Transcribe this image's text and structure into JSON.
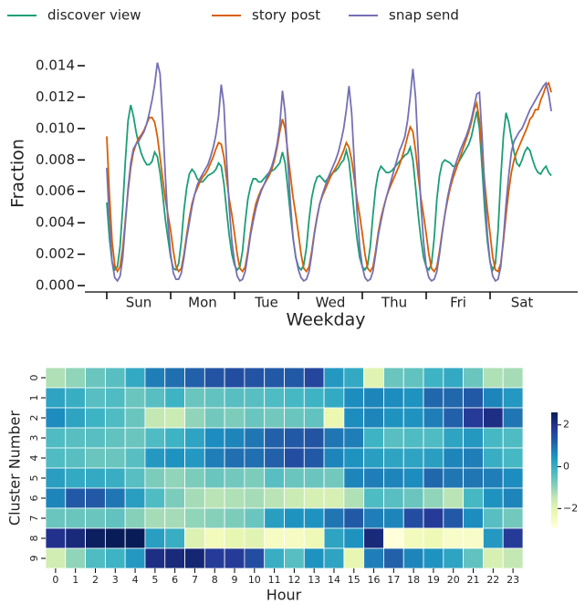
{
  "chart_data": [
    {
      "type": "line",
      "xlabel": "Weekday",
      "ylabel": "Fraction",
      "legend": "top",
      "categories": [
        "Sun",
        "Mon",
        "Tue",
        "Wed",
        "Thu",
        "Fri",
        "Sat"
      ],
      "ylim": [
        0,
        0.014
      ],
      "yticks": [
        {
          "value": 0,
          "label": "0.000"
        },
        {
          "value": 0.002,
          "label": "0.002"
        },
        {
          "value": 0.004,
          "label": "0.004"
        },
        {
          "value": 0.006,
          "label": "0.006"
        },
        {
          "value": 0.008,
          "label": "0.008"
        },
        {
          "value": 0.01,
          "label": "0.010"
        },
        {
          "value": 0.012,
          "label": "0.012"
        },
        {
          "value": 0.014,
          "label": "0.014"
        }
      ],
      "series": [
        {
          "name": "discover view",
          "color": "#1b9e77",
          "values": [
            [
              0.0053,
              0.003,
              0.0015,
              0.001,
              0.0012,
              0.0025,
              0.005,
              0.008,
              0.0105,
              0.0115,
              0.0108,
              0.0098,
              0.009,
              0.0084,
              0.008,
              0.0077,
              0.0077,
              0.0079,
              0.0085,
              0.0082,
              0.0072,
              0.0058,
              0.0042,
              0.003
            ],
            [
              0.0018,
              0.0011,
              0.001,
              0.0014,
              0.0028,
              0.0048,
              0.0062,
              0.0071,
              0.0074,
              0.0072,
              0.0068,
              0.0066,
              0.0066,
              0.0068,
              0.007,
              0.0071,
              0.0072,
              0.0074,
              0.0078,
              0.0076,
              0.0065,
              0.0048,
              0.0032,
              0.002
            ],
            [
              0.0013,
              0.001,
              0.0012,
              0.0022,
              0.004,
              0.0055,
              0.0063,
              0.0068,
              0.0068,
              0.0066,
              0.0066,
              0.0068,
              0.007,
              0.0072,
              0.0073,
              0.0074,
              0.0076,
              0.0078,
              0.0085,
              0.0078,
              0.0062,
              0.0045,
              0.003,
              0.0018
            ],
            [
              0.0012,
              0.001,
              0.0013,
              0.0024,
              0.0042,
              0.0056,
              0.0064,
              0.0069,
              0.007,
              0.0068,
              0.0066,
              0.0068,
              0.007,
              0.0072,
              0.0073,
              0.0075,
              0.0078,
              0.008,
              0.0086,
              0.0079,
              0.0063,
              0.0045,
              0.003,
              0.0018
            ],
            [
              0.0012,
              0.001,
              0.0013,
              0.0025,
              0.0045,
              0.0062,
              0.0072,
              0.0076,
              0.0074,
              0.0072,
              0.0072,
              0.0073,
              0.0075,
              0.0077,
              0.0079,
              0.0081,
              0.0083,
              0.0084,
              0.0088,
              0.008,
              0.0063,
              0.0045,
              0.003,
              0.0018
            ],
            [
              0.0012,
              0.001,
              0.0014,
              0.003,
              0.0055,
              0.007,
              0.0078,
              0.008,
              0.0079,
              0.0078,
              0.0076,
              0.0076,
              0.0078,
              0.0081,
              0.0084,
              0.0087,
              0.009,
              0.0095,
              0.0103,
              0.0111,
              0.01,
              0.0075,
              0.0048,
              0.0028
            ],
            [
              0.0015,
              0.001,
              0.0014,
              0.0035,
              0.0068,
              0.0095,
              0.011,
              0.0104,
              0.0094,
              0.0085,
              0.0078,
              0.0076,
              0.008,
              0.0085,
              0.0088,
              0.0086,
              0.008,
              0.0075,
              0.0072,
              0.0071,
              0.0074,
              0.0076,
              0.0072,
              0.007
            ]
          ]
        },
        {
          "name": "story post",
          "color": "#d95f02",
          "values": [
            [
              0.0095,
              0.0058,
              0.0028,
              0.0013,
              0.0009,
              0.0012,
              0.0024,
              0.0042,
              0.006,
              0.0075,
              0.0085,
              0.009,
              0.0094,
              0.0096,
              0.0099,
              0.0103,
              0.0107,
              0.0107,
              0.0104,
              0.0095,
              0.0082,
              0.0068,
              0.0055,
              0.0045
            ],
            [
              0.0035,
              0.0022,
              0.0012,
              0.0009,
              0.0011,
              0.002,
              0.0032,
              0.0043,
              0.0052,
              0.0058,
              0.0062,
              0.0066,
              0.0069,
              0.0071,
              0.0074,
              0.0078,
              0.0082,
              0.0087,
              0.0091,
              0.009,
              0.0082,
              0.0068,
              0.0055,
              0.0045
            ],
            [
              0.0033,
              0.002,
              0.0011,
              0.0009,
              0.0012,
              0.0022,
              0.0034,
              0.0044,
              0.0052,
              0.0057,
              0.0061,
              0.0064,
              0.0067,
              0.007,
              0.0074,
              0.008,
              0.0088,
              0.0098,
              0.0106,
              0.01,
              0.0085,
              0.007,
              0.0056,
              0.0045
            ],
            [
              0.0033,
              0.002,
              0.0011,
              0.0009,
              0.0012,
              0.0022,
              0.0034,
              0.0044,
              0.0052,
              0.0057,
              0.0061,
              0.0065,
              0.0069,
              0.0072,
              0.0075,
              0.0078,
              0.0082,
              0.0086,
              0.0091,
              0.0088,
              0.008,
              0.0068,
              0.0055,
              0.0045
            ],
            [
              0.0033,
              0.002,
              0.0011,
              0.0009,
              0.0012,
              0.0022,
              0.0034,
              0.0043,
              0.005,
              0.0056,
              0.0061,
              0.0065,
              0.0069,
              0.0073,
              0.0077,
              0.0082,
              0.0088,
              0.0095,
              0.0101,
              0.0098,
              0.0086,
              0.007,
              0.0056,
              0.0045
            ],
            [
              0.0033,
              0.002,
              0.0011,
              0.0009,
              0.0012,
              0.0022,
              0.0034,
              0.0045,
              0.0054,
              0.0062,
              0.0068,
              0.0073,
              0.0078,
              0.0083,
              0.0088,
              0.0093,
              0.0098,
              0.0104,
              0.0112,
              0.0116,
              0.0105,
              0.0085,
              0.0065,
              0.0048
            ],
            [
              0.0033,
              0.0018,
              0.001,
              0.0009,
              0.0014,
              0.0028,
              0.0045,
              0.006,
              0.0072,
              0.008,
              0.0085,
              0.0089,
              0.0093,
              0.0097,
              0.0101,
              0.0106,
              0.0108,
              0.0112,
              0.0112,
              0.0118,
              0.0122,
              0.0127,
              0.0129,
              0.0123
            ]
          ]
        },
        {
          "name": "snap send",
          "color": "#7570b3",
          "values": [
            [
              0.0075,
              0.004,
              0.0015,
              0.0005,
              0.0003,
              0.0006,
              0.0018,
              0.004,
              0.0062,
              0.0078,
              0.0087,
              0.009,
              0.0092,
              0.0095,
              0.0098,
              0.0103,
              0.011,
              0.0118,
              0.0128,
              0.0142,
              0.0135,
              0.0105,
              0.007,
              0.004
            ],
            [
              0.002,
              0.0008,
              0.0004,
              0.0004,
              0.0008,
              0.0018,
              0.003,
              0.004,
              0.005,
              0.0058,
              0.0064,
              0.0068,
              0.0071,
              0.0074,
              0.0077,
              0.0082,
              0.0088,
              0.0096,
              0.0108,
              0.0128,
              0.0115,
              0.008,
              0.005,
              0.0028
            ],
            [
              0.0015,
              0.0006,
              0.0003,
              0.0004,
              0.0009,
              0.002,
              0.0032,
              0.0041,
              0.0049,
              0.0055,
              0.006,
              0.0064,
              0.0068,
              0.0072,
              0.0076,
              0.0082,
              0.009,
              0.0102,
              0.0124,
              0.011,
              0.008,
              0.0052,
              0.003,
              0.0018
            ],
            [
              0.001,
              0.0005,
              0.0003,
              0.0004,
              0.0009,
              0.002,
              0.0033,
              0.0043,
              0.0052,
              0.0058,
              0.0063,
              0.0068,
              0.0072,
              0.0076,
              0.008,
              0.0085,
              0.0092,
              0.01,
              0.0112,
              0.0127,
              0.011,
              0.0078,
              0.0048,
              0.0025
            ],
            [
              0.0012,
              0.0005,
              0.0003,
              0.0004,
              0.0009,
              0.002,
              0.0032,
              0.0041,
              0.0049,
              0.0056,
              0.0062,
              0.0068,
              0.0074,
              0.008,
              0.0086,
              0.009,
              0.0095,
              0.0105,
              0.012,
              0.0138,
              0.012,
              0.0085,
              0.0052,
              0.0028
            ],
            [
              0.0012,
              0.0005,
              0.0003,
              0.0004,
              0.0009,
              0.002,
              0.0033,
              0.0045,
              0.0056,
              0.0064,
              0.0071,
              0.0077,
              0.0082,
              0.0087,
              0.0091,
              0.0095,
              0.01,
              0.0106,
              0.0114,
              0.0122,
              0.0123,
              0.0095,
              0.006,
              0.0032
            ],
            [
              0.0015,
              0.0006,
              0.0003,
              0.0004,
              0.0012,
              0.003,
              0.0052,
              0.007,
              0.0085,
              0.0092,
              0.0095,
              0.0098,
              0.01,
              0.0104,
              0.0108,
              0.0112,
              0.0115,
              0.0118,
              0.0121,
              0.0124,
              0.0127,
              0.0129,
              0.0122,
              0.0111
            ]
          ]
        }
      ]
    },
    {
      "type": "heatmap",
      "xlabel": "Hour",
      "ylabel": "Cluster Number",
      "x": [
        0,
        1,
        2,
        3,
        4,
        5,
        6,
        7,
        8,
        9,
        10,
        11,
        12,
        13,
        14,
        15,
        16,
        17,
        18,
        19,
        20,
        21,
        22,
        23
      ],
      "y": [
        0,
        1,
        2,
        3,
        4,
        5,
        6,
        7,
        8,
        9
      ],
      "colormap": [
        "#ffffd9",
        "#edf8b1",
        "#c7e9b4",
        "#7fcdbb",
        "#41b6c4",
        "#1d91c0",
        "#225ea8",
        "#253494",
        "#081d58"
      ],
      "clim": [
        -2.9,
        2.6
      ],
      "cticks": [
        {
          "value": -2,
          "label": "−2"
        },
        0,
        2
      ],
      "values": [
        [
          -1.3,
          -1.0,
          -0.6,
          -0.4,
          0.1,
          0.8,
          1.0,
          1.2,
          1.4,
          1.5,
          1.4,
          1.3,
          1.3,
          1.6,
          0.4,
          0.1,
          -2.0,
          -0.6,
          -0.5,
          -0.1,
          0.1,
          -0.6,
          -1.3,
          -1.2
        ],
        [
          0.2,
          0.0,
          -0.4,
          -0.3,
          -0.6,
          -0.4,
          -0.1,
          -0.6,
          -0.5,
          -0.4,
          -0.4,
          -0.3,
          -0.2,
          -0.1,
          0.1,
          0.6,
          0.7,
          0.6,
          0.5,
          1.1,
          1.1,
          1.3,
          0.7,
          0.4
        ],
        [
          0.6,
          0.2,
          -0.1,
          -0.3,
          -0.6,
          -1.5,
          -1.6,
          -1.0,
          -0.7,
          -0.8,
          -0.6,
          -0.7,
          -0.6,
          -0.5,
          -2.2,
          0.6,
          0.7,
          0.5,
          0.5,
          0.8,
          1.2,
          1.8,
          2.1,
          0.9
        ],
        [
          -0.3,
          -0.4,
          -0.4,
          -0.5,
          -0.6,
          -0.3,
          -0.1,
          0.2,
          0.6,
          0.7,
          0.9,
          1.2,
          1.3,
          1.4,
          0.9,
          0.8,
          -0.1,
          -0.4,
          -0.3,
          -0.3,
          0.2,
          0.4,
          -0.2,
          -0.3
        ],
        [
          -0.3,
          -0.4,
          -0.6,
          -0.6,
          -0.4,
          0.4,
          0.5,
          0.4,
          0.8,
          1.0,
          1.0,
          1.2,
          1.5,
          1.3,
          0.7,
          0.5,
          0.3,
          0.2,
          0.2,
          0.3,
          0.7,
          0.8,
          0.0,
          -0.2
        ],
        [
          0.3,
          0.1,
          0.1,
          0.0,
          -0.4,
          -0.8,
          -1.0,
          -0.8,
          -0.6,
          -0.7,
          -0.8,
          -0.4,
          -0.6,
          -0.6,
          -0.7,
          0.7,
          0.8,
          0.7,
          0.6,
          1.1,
          0.9,
          0.9,
          0.8,
          0.6
        ],
        [
          0.7,
          1.3,
          1.3,
          0.9,
          0.3,
          -0.3,
          -0.8,
          -1.2,
          -1.4,
          -1.3,
          -1.2,
          -1.4,
          -1.6,
          -1.8,
          -1.8,
          -1.3,
          -0.3,
          -0.4,
          -0.6,
          -1.0,
          -1.4,
          -0.2,
          0.5,
          0.7
        ],
        [
          -0.6,
          -0.6,
          -0.6,
          -0.5,
          -0.9,
          -1.2,
          -1.2,
          -1.0,
          -0.9,
          -0.8,
          -0.6,
          0.3,
          0.5,
          0.5,
          0.9,
          1.3,
          0.8,
          0.7,
          1.5,
          1.8,
          1.3,
          0.6,
          -0.4,
          -0.7
        ],
        [
          2.0,
          2.2,
          2.5,
          2.6,
          2.6,
          0.3,
          0.0,
          -1.9,
          -2.4,
          -2.1,
          -2.0,
          -2.5,
          -2.5,
          -2.3,
          0.2,
          0.5,
          2.2,
          -2.9,
          -2.4,
          -2.3,
          -2.6,
          -2.6,
          0.4,
          1.8
        ],
        [
          -1.7,
          -1.0,
          -0.3,
          -0.1,
          0.4,
          2.1,
          2.2,
          2.3,
          1.8,
          1.8,
          1.5,
          0.0,
          -0.4,
          0.5,
          0.2,
          -2.1,
          0.8,
          1.2,
          0.7,
          0.5,
          0.2,
          -0.5,
          -1.8,
          -1.5
        ]
      ]
    }
  ]
}
